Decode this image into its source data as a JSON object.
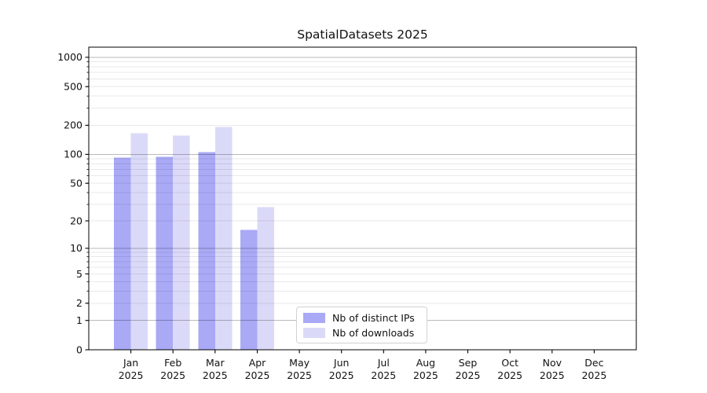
{
  "title": "SpatialDatasets 2025",
  "chart_data": {
    "type": "bar",
    "title": "SpatialDatasets 2025",
    "categories": [
      "Jan",
      "Feb",
      "Mar",
      "Apr",
      "May",
      "Jun",
      "Jul",
      "Aug",
      "Sep",
      "Oct",
      "Nov",
      "Dec"
    ],
    "year_label": "2025",
    "series": [
      {
        "name": "Nb of distinct IPs",
        "color": "#a9a9f6",
        "values": [
          93,
          94,
          106,
          16,
          0,
          0,
          0,
          0,
          0,
          0,
          0,
          0
        ]
      },
      {
        "name": "Nb of downloads",
        "color": "#dadaf8",
        "values": [
          165,
          157,
          193,
          28,
          0,
          0,
          0,
          0,
          0,
          0,
          0,
          0
        ]
      }
    ],
    "y_ticks": [
      0,
      1,
      2,
      5,
      10,
      20,
      50,
      100,
      200,
      500,
      1000
    ],
    "scale": "log1p",
    "ylim": [
      0,
      1271
    ],
    "grid": true,
    "grid_major_decades": [
      1,
      10,
      100,
      1000
    ],
    "legend_position": "lower center-right inside plot",
    "xlabel": "",
    "ylabel": ""
  }
}
